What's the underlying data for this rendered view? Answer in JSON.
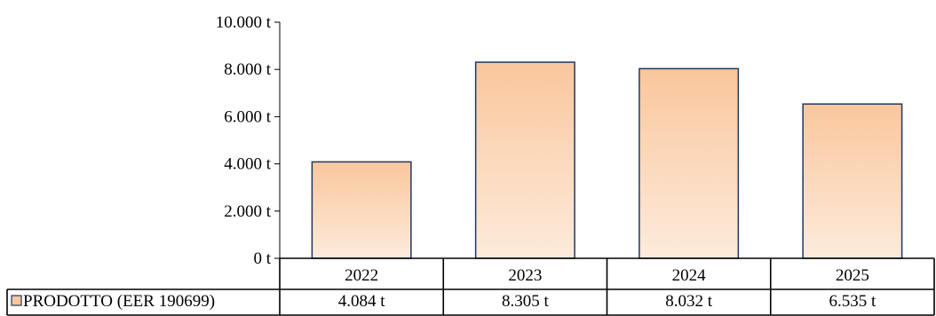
{
  "chart_data": {
    "type": "bar",
    "categories": [
      "2022",
      "2023",
      "2024",
      "2025"
    ],
    "series": [
      {
        "name": "PRODOTTO (EER 190699)",
        "values": [
          4084,
          8305,
          8032,
          6535
        ]
      }
    ],
    "data_labels": [
      "4.084 t",
      "8.305 t",
      "8.032 t",
      "6.535 t"
    ],
    "y_ticks": [
      0,
      2000,
      4000,
      6000,
      8000,
      10000
    ],
    "y_tick_labels": [
      "0 t",
      "2.000 t",
      "4.000 t",
      "6.000 t",
      "8.000 t",
      "10.000 t"
    ],
    "ylim": [
      0,
      10000
    ],
    "grid": false,
    "legend": "data-table",
    "colors": {
      "bar_top": "#f9c79d",
      "bar_bottom": "#fdebdc",
      "bar_stroke": "#1f3864",
      "legend_key_fill": "#f9c79d",
      "legend_key_stroke": "#1f3864"
    }
  }
}
